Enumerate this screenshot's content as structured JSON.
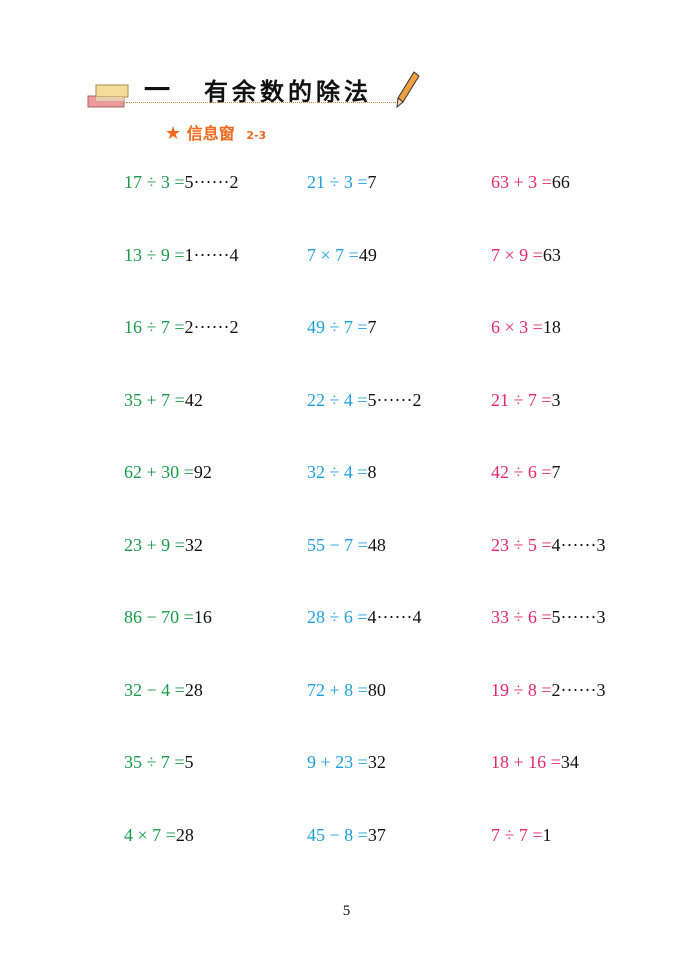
{
  "header": {
    "number": "一",
    "title": "有余数的除法",
    "subtitle": "信息窗",
    "subtitle_code": "2-3",
    "icon_left": "books-icon",
    "icon_right": "pencil-icon",
    "subtitle_icon": "star-icon"
  },
  "colors": {
    "col1": "#1a9a4a",
    "col2": "#1ea0e0",
    "col3": "#e6286a",
    "accent": "#ee6a1e"
  },
  "columns": [
    [
      {
        "expr": "17 ÷ 3 =",
        "answer": "5······2"
      },
      {
        "expr": "13 ÷ 9 =",
        "answer": "1······4"
      },
      {
        "expr": "16 ÷ 7 =",
        "answer": "2······2"
      },
      {
        "expr": "35 + 7 =",
        "answer": "42"
      },
      {
        "expr": "62 + 30 =",
        "answer": "92"
      },
      {
        "expr": "23 + 9 =",
        "answer": "32"
      },
      {
        "expr": "86 − 70 =",
        "answer": "16"
      },
      {
        "expr": "32 − 4 =",
        "answer": "28"
      },
      {
        "expr": "35 ÷ 7 =",
        "answer": "5"
      },
      {
        "expr": "4 × 7 =",
        "answer": "28"
      }
    ],
    [
      {
        "expr": "21 ÷ 3 =",
        "answer": "7"
      },
      {
        "expr": "7 × 7 =",
        "answer": "49"
      },
      {
        "expr": "49 ÷ 7 =",
        "answer": "7"
      },
      {
        "expr": "22 ÷ 4 =",
        "answer": "5······2"
      },
      {
        "expr": "32 ÷ 4 =",
        "answer": "8"
      },
      {
        "expr": "55 − 7 =",
        "answer": "48"
      },
      {
        "expr": "28 ÷ 6 =",
        "answer": "4······4"
      },
      {
        "expr": "72 + 8 =",
        "answer": "80"
      },
      {
        "expr": "9 + 23 =",
        "answer": "32"
      },
      {
        "expr": "45 − 8 =",
        "answer": "37"
      }
    ],
    [
      {
        "expr": "63 + 3 =",
        "answer": "66"
      },
      {
        "expr": "7 × 9 =",
        "answer": "63"
      },
      {
        "expr": "6 × 3 =",
        "answer": "18"
      },
      {
        "expr": "21 ÷ 7 =",
        "answer": "3"
      },
      {
        "expr": "42 ÷ 6 =",
        "answer": "7"
      },
      {
        "expr": "23 ÷ 5 =",
        "answer": "4······3"
      },
      {
        "expr": "33 ÷ 6 =",
        "answer": "5······3"
      },
      {
        "expr": "19 ÷ 8 =",
        "answer": "2······3"
      },
      {
        "expr": "18 + 16 =",
        "answer": "34"
      },
      {
        "expr": "7 ÷ 7 =",
        "answer": "1"
      }
    ]
  ],
  "page_number": "5"
}
